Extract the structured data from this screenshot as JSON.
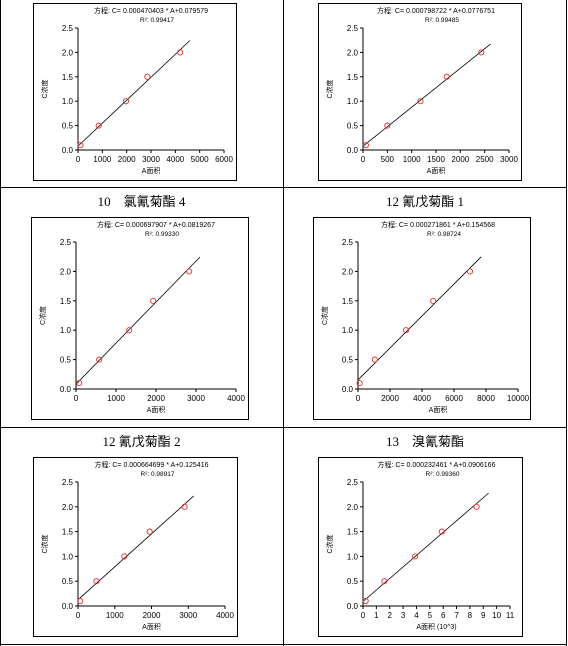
{
  "titles": {
    "c3": "10　氯氰菊酯 4",
    "c4": "12 氰戊菊酯 1",
    "c5": "12 氰戊菊酯 2",
    "c6": "13　溴氰菊酯"
  },
  "chart_data": [
    {
      "type": "scatter",
      "equation": "方程:  C= 0.000470403 * A+0.079579",
      "r2": "R²:  0.99417",
      "xlabel": "A面积",
      "ylabel": "C浓度",
      "xlim": [
        0,
        6000
      ],
      "ylim": [
        0,
        2.5
      ],
      "xticks": [
        0,
        1000,
        2000,
        3000,
        4000,
        5000,
        6000
      ],
      "xtick_labels": [
        "0",
        "1000",
        "2000",
        "3000",
        "4000",
        "5000",
        "6000"
      ],
      "yticks": [
        0,
        0.5,
        1,
        1.5,
        2,
        2.5
      ],
      "ytick_labels": [
        "0.0",
        "0.5",
        "1.0",
        "1.5",
        "2.0",
        "2.5"
      ],
      "points": [
        [
          100,
          0.1
        ],
        [
          850,
          0.5
        ],
        [
          1970,
          1.0
        ],
        [
          2850,
          1.5
        ],
        [
          4200,
          2.0
        ]
      ],
      "fit": {
        "slope": 0.000470403,
        "intercept": 0.079579,
        "x_range": [
          0,
          4600
        ]
      },
      "point_color": "#e03030"
    },
    {
      "type": "scatter",
      "equation": "方程:  C= 0.000798722 * A+0.0776751",
      "r2": "R²:  0.99485",
      "xlabel": "A面积",
      "ylabel": "C浓度",
      "xlim": [
        0,
        3000
      ],
      "ylim": [
        0,
        2.5
      ],
      "xticks": [
        0,
        500,
        1000,
        1500,
        2000,
        2500,
        3000
      ],
      "xtick_labels": [
        "0",
        "500",
        "1000",
        "1500",
        "2000",
        "2500",
        "3000"
      ],
      "yticks": [
        0,
        0.5,
        1,
        1.5,
        2,
        2.5
      ],
      "ytick_labels": [
        "0.0",
        "0.5",
        "1.0",
        "1.5",
        "2.0",
        "2.5"
      ],
      "points": [
        [
          60,
          0.1
        ],
        [
          500,
          0.5
        ],
        [
          1180,
          1.0
        ],
        [
          1720,
          1.5
        ],
        [
          2430,
          2.0
        ]
      ],
      "fit": {
        "slope": 0.000798722,
        "intercept": 0.0776751,
        "x_range": [
          0,
          2620
        ]
      },
      "point_color": "#e03030"
    },
    {
      "type": "scatter",
      "equation": "方程:  C= 0.000697907 * A+0.0819267",
      "r2": "R²:  0.99330",
      "xlabel": "A面积",
      "ylabel": "C浓度",
      "xlim": [
        0,
        4000
      ],
      "ylim": [
        0,
        2.5
      ],
      "xticks": [
        0,
        1000,
        2000,
        3000,
        4000
      ],
      "xtick_labels": [
        "0",
        "1000",
        "2000",
        "3000",
        "4000"
      ],
      "yticks": [
        0,
        0.5,
        1,
        1.5,
        2,
        2.5
      ],
      "ytick_labels": [
        "0.0",
        "0.5",
        "1.0",
        "1.5",
        "2.0",
        "2.5"
      ],
      "points": [
        [
          80,
          0.1
        ],
        [
          580,
          0.5
        ],
        [
          1330,
          1.0
        ],
        [
          1930,
          1.5
        ],
        [
          2830,
          2.0
        ]
      ],
      "fit": {
        "slope": 0.000697907,
        "intercept": 0.0819267,
        "x_range": [
          0,
          3100
        ]
      },
      "point_color": "#e03030"
    },
    {
      "type": "scatter",
      "equation": "方程:  C= 0.000271861 * A+0.154568",
      "r2": "R²:  0.98724",
      "xlabel": "A面积",
      "ylabel": "C浓度",
      "xlim": [
        0,
        10000
      ],
      "ylim": [
        0,
        2.5
      ],
      "xticks": [
        0,
        2000,
        4000,
        6000,
        8000,
        10000
      ],
      "xtick_labels": [
        "0",
        "2000",
        "4000",
        "6000",
        "8000",
        "10000"
      ],
      "yticks": [
        0,
        0.5,
        1,
        1.5,
        2,
        2.5
      ],
      "ytick_labels": [
        "0.0",
        "0.5",
        "1.0",
        "1.5",
        "2.0",
        "2.5"
      ],
      "points": [
        [
          100,
          0.1
        ],
        [
          1050,
          0.5
        ],
        [
          3000,
          1.0
        ],
        [
          4700,
          1.5
        ],
        [
          7000,
          2.0
        ]
      ],
      "fit": {
        "slope": 0.000271861,
        "intercept": 0.154568,
        "x_range": [
          0,
          7700
        ]
      },
      "point_color": "#e03030"
    },
    {
      "type": "scatter",
      "equation": "方程:  C= 0.000664699 * A+0.125416",
      "r2": "R²:  0.98917",
      "xlabel": "A面积",
      "ylabel": "C浓度",
      "xlim": [
        0,
        4000
      ],
      "ylim": [
        0,
        2.5
      ],
      "xticks": [
        0,
        1000,
        2000,
        3000,
        4000
      ],
      "xtick_labels": [
        "0",
        "1000",
        "2000",
        "3000",
        "4000"
      ],
      "yticks": [
        0,
        0.5,
        1,
        1.5,
        2,
        2.5
      ],
      "ytick_labels": [
        "0.0",
        "0.5",
        "1.0",
        "1.5",
        "2.0",
        "2.5"
      ],
      "points": [
        [
          60,
          0.1
        ],
        [
          500,
          0.5
        ],
        [
          1260,
          1.0
        ],
        [
          1950,
          1.5
        ],
        [
          2900,
          2.0
        ]
      ],
      "fit": {
        "slope": 0.000664699,
        "intercept": 0.125416,
        "x_range": [
          0,
          3150
        ]
      },
      "point_color": "#e03030"
    },
    {
      "type": "scatter",
      "equation": "方程:  C= 0.000232461 * A+0.0906166",
      "r2": "R²:  0.99360",
      "xlabel": "A面积 (10^3)",
      "ylabel": "C浓度",
      "xlim": [
        0,
        11
      ],
      "ylim": [
        0,
        2.5
      ],
      "xticks": [
        0,
        1,
        2,
        3,
        4,
        5,
        6,
        7,
        8,
        9,
        10,
        11
      ],
      "xtick_labels": [
        "0",
        "1",
        "2",
        "3",
        "4",
        "5",
        "6",
        "7",
        "8",
        "9",
        "10",
        "11"
      ],
      "yticks": [
        0,
        0.5,
        1,
        1.5,
        2,
        2.5
      ],
      "ytick_labels": [
        "0.0",
        "0.5",
        "1.0",
        "1.5",
        "2.0",
        "2.5"
      ],
      "points": [
        [
          0.2,
          0.1
        ],
        [
          1.6,
          0.5
        ],
        [
          3.9,
          1.0
        ],
        [
          5.9,
          1.5
        ],
        [
          8.5,
          2.0
        ]
      ],
      "fit": {
        "slope": 0.232461,
        "intercept": 0.0906166,
        "x_range": [
          0,
          9.4
        ]
      },
      "point_color": "#e03030"
    }
  ]
}
